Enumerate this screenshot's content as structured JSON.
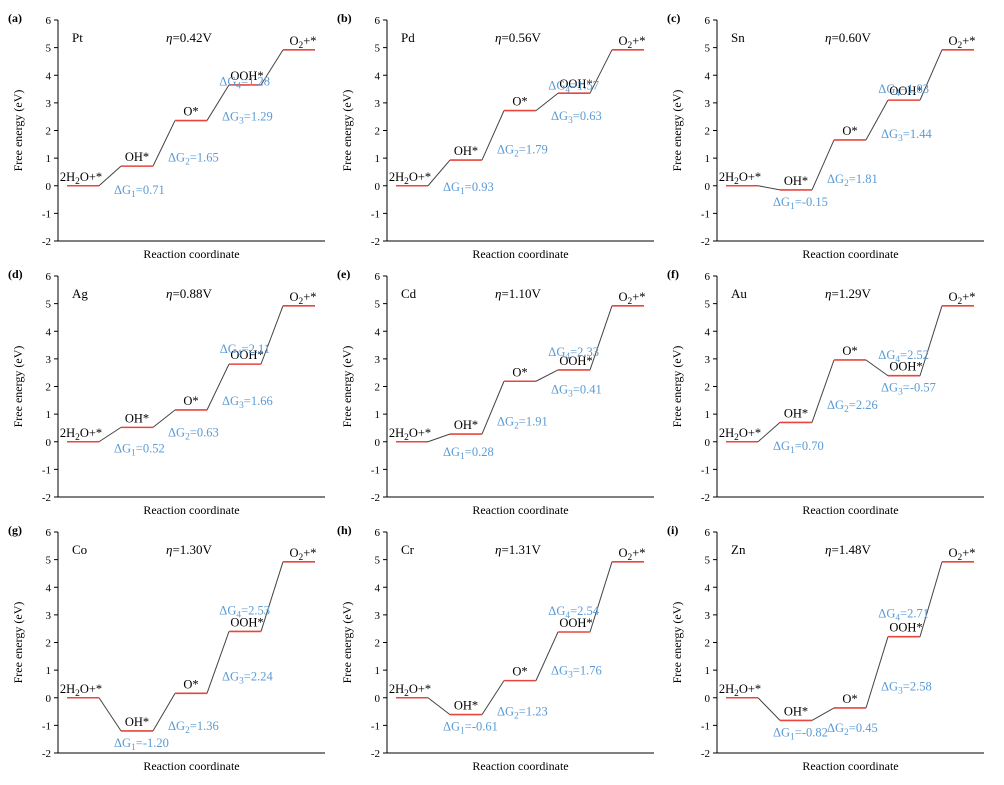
{
  "colors": {
    "level": "#e8453c",
    "delta": "#5b9bd5",
    "axis": "#000000"
  },
  "chart_data": [
    {
      "type": "line",
      "label": "(a)",
      "metal": "Pt",
      "eta": "=0.42V",
      "xlabel": "Reaction coordinate",
      "ylabel": "Free energy (eV)",
      "ylim": [
        -2,
        6
      ],
      "yticks": [
        -2,
        -1,
        0,
        1,
        2,
        3,
        4,
        5,
        6
      ],
      "energies": [
        0,
        0.71,
        2.36,
        3.65,
        4.92
      ],
      "species": [
        "2H₂O+*",
        "OH*",
        "O*",
        "OOH*",
        "O₂+*"
      ],
      "deltas": [
        "ΔG₁=0.71",
        "ΔG₂=1.65",
        "ΔG₃=1.29",
        "ΔG₄=1.28"
      ]
    },
    {
      "type": "line",
      "label": "(b)",
      "metal": "Pd",
      "eta": "=0.56V",
      "xlabel": "Reaction coordinate",
      "ylabel": "Free energy (eV)",
      "ylim": [
        -2,
        6
      ],
      "yticks": [
        -2,
        -1,
        0,
        1,
        2,
        3,
        4,
        5,
        6
      ],
      "energies": [
        0,
        0.93,
        2.72,
        3.35,
        4.92
      ],
      "species": [
        "2H₂O+*",
        "OH*",
        "O*",
        "OOH*",
        "O₂+*"
      ],
      "deltas": [
        "ΔG₁=0.93",
        "ΔG₂=1.79",
        "ΔG₃=0.63",
        "ΔG₄=1.57"
      ]
    },
    {
      "type": "line",
      "label": "(c)",
      "metal": "Sn",
      "eta": "=0.60V",
      "xlabel": "Reaction coordinate",
      "ylabel": "Free energy (eV)",
      "ylim": [
        -2,
        6
      ],
      "yticks": [
        -2,
        -1,
        0,
        1,
        2,
        3,
        4,
        5,
        6
      ],
      "energies": [
        0,
        -0.15,
        1.66,
        3.1,
        4.92
      ],
      "species": [
        "2H₂O+*",
        "OH*",
        "O*",
        "OOH*",
        "O₂+*"
      ],
      "deltas": [
        "ΔG₁=-0.15",
        "ΔG₂=1.81",
        "ΔG₃=1.44",
        "ΔG₄=1.83"
      ]
    },
    {
      "type": "line",
      "label": "(d)",
      "metal": "Ag",
      "eta": "=0.88V",
      "xlabel": "Reaction coordinate",
      "ylabel": "Free energy (eV)",
      "ylim": [
        -2,
        6
      ],
      "yticks": [
        -2,
        -1,
        0,
        1,
        2,
        3,
        4,
        5,
        6
      ],
      "energies": [
        0,
        0.52,
        1.15,
        2.81,
        4.92
      ],
      "species": [
        "2H₂O+*",
        "OH*",
        "O*",
        "OOH*",
        "O₂+*"
      ],
      "deltas": [
        "ΔG₁=0.52",
        "ΔG₂=0.63",
        "ΔG₃=1.66",
        "ΔG₄=2.11"
      ]
    },
    {
      "type": "line",
      "label": "(e)",
      "metal": "Cd",
      "eta": "=1.10V",
      "xlabel": "Reaction coordinate",
      "ylabel": "Free energy (eV)",
      "ylim": [
        -2,
        6
      ],
      "yticks": [
        -2,
        -1,
        0,
        1,
        2,
        3,
        4,
        5,
        6
      ],
      "energies": [
        0,
        0.28,
        2.19,
        2.6,
        4.92
      ],
      "species": [
        "2H₂O+*",
        "OH*",
        "O*",
        "OOH*",
        "O₂+*"
      ],
      "deltas": [
        "ΔG₁=0.28",
        "ΔG₂=1.91",
        "ΔG₃=0.41",
        "ΔG₄=2.33"
      ]
    },
    {
      "type": "line",
      "label": "(f)",
      "metal": "Au",
      "eta": "=1.29V",
      "xlabel": "Reaction coordinate",
      "ylabel": "Free energy (eV)",
      "ylim": [
        -2,
        6
      ],
      "yticks": [
        -2,
        -1,
        0,
        1,
        2,
        3,
        4,
        5,
        6
      ],
      "energies": [
        0,
        0.7,
        2.96,
        2.39,
        4.92
      ],
      "species": [
        "2H₂O+*",
        "OH*",
        "O*",
        "OOH*",
        "O₂+*"
      ],
      "deltas": [
        "ΔG₁=0.70",
        "ΔG₂=2.26",
        "ΔG₃=-0.57",
        "ΔG₄=2.52"
      ]
    },
    {
      "type": "line",
      "label": "(g)",
      "metal": "Co",
      "eta": "=1.30V",
      "xlabel": "Reaction coordinate",
      "ylabel": "Free energy (eV)",
      "ylim": [
        -2,
        6
      ],
      "yticks": [
        -2,
        -1,
        0,
        1,
        2,
        3,
        4,
        5,
        6
      ],
      "energies": [
        0,
        -1.2,
        0.16,
        2.4,
        4.92
      ],
      "species": [
        "2H₂O+*",
        "OH*",
        "O*",
        "OOH*",
        "O₂+*"
      ],
      "deltas": [
        "ΔG₁=-1.20",
        "ΔG₂=1.36",
        "ΔG₃=2.24",
        "ΔG₄=2.53"
      ]
    },
    {
      "type": "line",
      "label": "(h)",
      "metal": "Cr",
      "eta": "=1.31V",
      "xlabel": "Reaction coordinate",
      "ylabel": "Free energy (eV)",
      "ylim": [
        -2,
        6
      ],
      "yticks": [
        -2,
        -1,
        0,
        1,
        2,
        3,
        4,
        5,
        6
      ],
      "energies": [
        0,
        -0.61,
        0.62,
        2.38,
        4.92
      ],
      "species": [
        "2H₂O+*",
        "OH*",
        "O*",
        "OOH*",
        "O₂+*"
      ],
      "deltas": [
        "ΔG₁=-0.61",
        "ΔG₂=1.23",
        "ΔG₃=1.76",
        "ΔG₄=2.54"
      ]
    },
    {
      "type": "line",
      "label": "(i)",
      "metal": "Zn",
      "eta": "=1.48V",
      "xlabel": "Reaction coordinate",
      "ylabel": "Free energy (eV)",
      "ylim": [
        -2,
        6
      ],
      "yticks": [
        -2,
        -1,
        0,
        1,
        2,
        3,
        4,
        5,
        6
      ],
      "energies": [
        0,
        -0.82,
        -0.37,
        2.21,
        4.92
      ],
      "species": [
        "2H₂O+*",
        "OH*",
        "O*",
        "OOH*",
        "O₂+*"
      ],
      "deltas": [
        "ΔG₁=-0.82",
        "ΔG₂=0.45",
        "ΔG₃=2.58",
        "ΔG₄=2.71"
      ]
    }
  ]
}
